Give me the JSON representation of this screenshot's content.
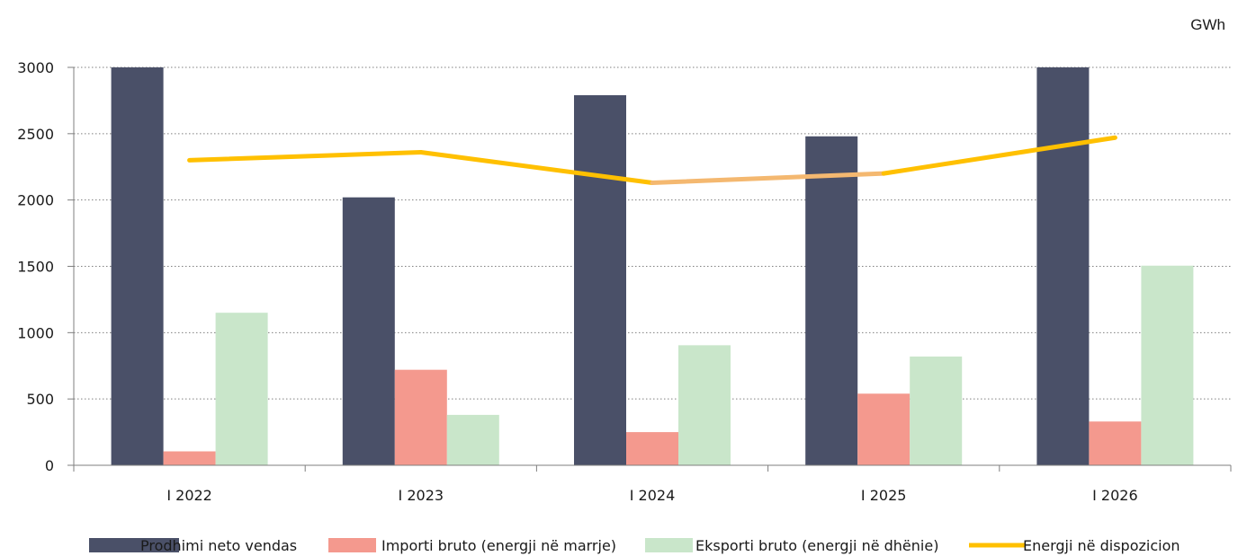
{
  "chart_data": {
    "type": "bar",
    "unit": "GWh",
    "categories": [
      "I 2022",
      "I 2023",
      "I 2024",
      "I 2025",
      "I 2026"
    ],
    "series": [
      {
        "name": "Prodhimi neto vendas",
        "type": "bar",
        "color": "#4a5068",
        "values": [
          3000,
          2020,
          2790,
          2480,
          3000
        ]
      },
      {
        "name": "Importi bruto (energji në marrje)",
        "type": "bar",
        "color": "#f4998e",
        "values": [
          105,
          720,
          250,
          540,
          330
        ]
      },
      {
        "name": "Eksporti bruto (energji në dhënie)",
        "type": "bar",
        "color": "#c9e6ca",
        "values": [
          1150,
          380,
          905,
          820,
          1505
        ]
      },
      {
        "name": "Energji në dispozicion",
        "type": "line",
        "color": "#ffc000",
        "segment_colors": [
          "#ffc000",
          "#ffc000",
          "#f4b870",
          "#ffc000"
        ],
        "values": [
          2300,
          2360,
          2130,
          2200,
          2470
        ]
      }
    ],
    "yticks": [
      0,
      500,
      1000,
      1500,
      2000,
      2500,
      3000
    ],
    "ylim": [
      0,
      3000
    ],
    "grid": "horizontal-dotted",
    "legend": "bottom"
  }
}
